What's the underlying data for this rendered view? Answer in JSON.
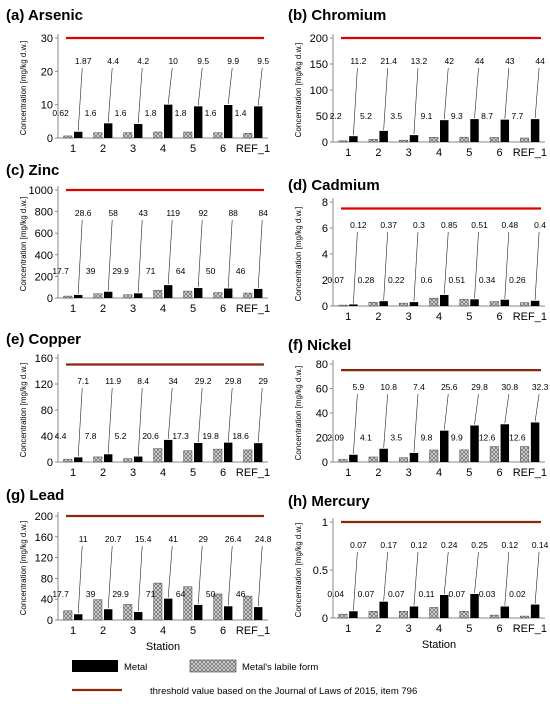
{
  "colors": {
    "metal": "#000000",
    "labile_fill": "#cfcfcf",
    "threshold_a": "#e00000",
    "threshold_b": "#8b2a0a"
  },
  "chart_data": [
    {
      "type": "bar",
      "title": "(a) Arsenic",
      "ylabel": "Concentration [mg/kg d.w.]",
      "xlabel": "",
      "ylim": [
        0,
        30
      ],
      "yticks": [
        0,
        10,
        20,
        30
      ],
      "categories": [
        "1",
        "2",
        "3",
        "4",
        "5",
        "6",
        "REF_1"
      ],
      "series": [
        {
          "name": "Metal",
          "values": [
            1.87,
            4.4,
            4.2,
            10,
            9.5,
            9.9,
            9.5
          ],
          "labels": [
            "1.87",
            "4.4",
            "4.2",
            "10",
            "9.5",
            "9.9",
            "9.5"
          ]
        },
        {
          "name": "Metal's labile form",
          "values": [
            0.62,
            1.6,
            1.6,
            1.8,
            1.8,
            1.6,
            1.4
          ],
          "labels": [
            "0.62",
            "1.6",
            "1.6",
            "1.8",
            "1.8",
            "1.6",
            "1.4"
          ]
        }
      ],
      "threshold": 30,
      "threshold_color": "red"
    },
    {
      "type": "bar",
      "title": "(b) Chromium",
      "ylabel": "Concentration [mg/kg d.w.]",
      "xlabel": "",
      "ylim": [
        0,
        200
      ],
      "yticks": [
        0,
        50,
        100,
        150,
        200
      ],
      "categories": [
        "1",
        "2",
        "3",
        "4",
        "5",
        "6",
        "REF_1"
      ],
      "series": [
        {
          "name": "Metal",
          "values": [
            11.2,
            21.4,
            13.2,
            42,
            44,
            43,
            44
          ],
          "labels": [
            "11.2",
            "21.4",
            "13.2",
            "42",
            "44",
            "43",
            "44"
          ]
        },
        {
          "name": "Metal's labile form",
          "values": [
            2.2,
            5.2,
            3.5,
            9.1,
            9.3,
            8.7,
            7.7
          ],
          "labels": [
            "2.2",
            "5.2",
            "3.5",
            "9.1",
            "9.3",
            "8.7",
            "7.7"
          ]
        }
      ],
      "threshold": 200,
      "threshold_color": "red"
    },
    {
      "type": "bar",
      "title": "(c) Zinc",
      "ylabel": "Concentration [mg/kg d.w.]",
      "xlabel": "",
      "ylim": [
        0,
        1000
      ],
      "yticks": [
        0,
        200,
        400,
        600,
        800,
        1000
      ],
      "categories": [
        "1",
        "2",
        "3",
        "4",
        "5",
        "6",
        "REF_1"
      ],
      "series": [
        {
          "name": "Metal",
          "values": [
            28.6,
            58,
            43,
            119,
            92,
            88,
            84
          ],
          "labels": [
            "28.6",
            "58",
            "43",
            "119",
            "92",
            "88",
            "84"
          ]
        },
        {
          "name": "Metal's labile form",
          "values": [
            17.7,
            39,
            29.9,
            71,
            64,
            50,
            46
          ],
          "labels": [
            "17.7",
            "39",
            "29.9",
            "71",
            "64",
            "50",
            "46"
          ]
        }
      ],
      "threshold": 1000,
      "threshold_color": "red"
    },
    {
      "type": "bar",
      "title": "(d) Cadmium",
      "ylabel": "Concentration [mg/kg d.w.]",
      "xlabel": "",
      "ylim": [
        0,
        8
      ],
      "yticks": [
        0,
        2,
        4,
        6,
        8
      ],
      "categories": [
        "1",
        "2",
        "3",
        "4",
        "5",
        "6",
        "REF_1"
      ],
      "series": [
        {
          "name": "Metal",
          "values": [
            0.12,
            0.37,
            0.3,
            0.85,
            0.51,
            0.48,
            0.4
          ],
          "labels": [
            "0.12",
            "0.37",
            "0.3",
            "0.85",
            "0.51",
            "0.48",
            "0.4"
          ]
        },
        {
          "name": "Metal's labile form",
          "values": [
            0.07,
            0.28,
            0.22,
            0.6,
            0.51,
            0.34,
            0.26
          ],
          "labels": [
            "0.07",
            "0.28",
            "0.22",
            "0.6",
            "0.51",
            "0.34",
            "0.26"
          ]
        }
      ],
      "threshold": 7.5,
      "threshold_color": "red"
    },
    {
      "type": "bar",
      "title": "(e) Copper",
      "ylabel": "Concentration [mg/kg d.w.]",
      "xlabel": "",
      "ylim": [
        0,
        160
      ],
      "yticks": [
        0,
        40,
        80,
        120,
        160
      ],
      "categories": [
        "1",
        "2",
        "3",
        "4",
        "5",
        "6",
        "REF_1"
      ],
      "series": [
        {
          "name": "Metal",
          "values": [
            7.1,
            11.9,
            8.4,
            34,
            29.2,
            29.8,
            29
          ],
          "labels": [
            "7.1",
            "11.9",
            "8.4",
            "34",
            "29.2",
            "29.8",
            "29"
          ]
        },
        {
          "name": "Metal's labile form",
          "values": [
            4.4,
            7.8,
            5.2,
            20.6,
            17.3,
            19.8,
            18.6
          ],
          "labels": [
            "4.4",
            "7.8",
            "5.2",
            "20.6",
            "17.3",
            "19.8",
            "18.6"
          ]
        }
      ],
      "threshold": 150,
      "threshold_color": "brown"
    },
    {
      "type": "bar",
      "title": "(f) Nickel",
      "ylabel": "Concentration [mg/kg d.w.]",
      "xlabel": "",
      "ylim": [
        0,
        80
      ],
      "yticks": [
        0,
        20,
        40,
        60,
        80
      ],
      "categories": [
        "1",
        "2",
        "3",
        "4",
        "5",
        "6",
        "REF_1"
      ],
      "series": [
        {
          "name": "Metal",
          "values": [
            5.9,
            10.8,
            7.4,
            25.6,
            29.8,
            30.8,
            32.3
          ],
          "labels": [
            "5.9",
            "10.8",
            "7.4",
            "25.6",
            "29.8",
            "30.8",
            "32.3"
          ]
        },
        {
          "name": "Metal's labile form",
          "values": [
            2.09,
            4.1,
            3.5,
            9.8,
            9.9,
            12.6,
            12.6
          ],
          "labels": [
            "2.09",
            "4.1",
            "3.5",
            "9.8",
            "9.9",
            "12.6",
            "12.6"
          ]
        }
      ],
      "threshold": 75,
      "threshold_color": "brown"
    },
    {
      "type": "bar",
      "title": "(g) Lead",
      "ylabel": "Concentration [mg/kg d.w.]",
      "xlabel": "Station",
      "ylim": [
        0,
        200
      ],
      "yticks": [
        0,
        40,
        80,
        120,
        160,
        200
      ],
      "categories": [
        "1",
        "2",
        "3",
        "4",
        "5",
        "6",
        "REF_1"
      ],
      "series": [
        {
          "name": "Metal",
          "values": [
            11,
            20.7,
            15.4,
            41,
            29,
            26.4,
            24.8
          ],
          "labels": [
            "11",
            "20.7",
            "15.4",
            "41",
            "29",
            "26.4",
            "24.8"
          ]
        },
        {
          "name": "Metal's labile form",
          "values": [
            17.7,
            39,
            29.9,
            71,
            64,
            50,
            46
          ],
          "labels": [
            "17.7",
            "39",
            "29.9",
            "71",
            "64",
            "50",
            "46"
          ]
        }
      ],
      "threshold": 200,
      "threshold_color": "brown"
    },
    {
      "type": "bar",
      "title": "(h) Mercury",
      "ylabel": "Concentration [mg/kg d.w.]",
      "xlabel": "Station",
      "ylim": [
        0,
        1
      ],
      "yticks": [
        0,
        0.5,
        1
      ],
      "categories": [
        "1",
        "2",
        "3",
        "4",
        "5",
        "6",
        "REF_1"
      ],
      "series": [
        {
          "name": "Metal",
          "values": [
            0.07,
            0.17,
            0.12,
            0.24,
            0.25,
            0.12,
            0.14
          ],
          "labels": [
            "0.07",
            "0.17",
            "0.12",
            "0.24",
            "0.25",
            "0.12",
            "0.14"
          ]
        },
        {
          "name": "Metal's labile form",
          "values": [
            0.04,
            0.07,
            0.07,
            0.11,
            0.07,
            0.03,
            0.02
          ],
          "labels": [
            "0.04",
            "0.07",
            "0.07",
            "0.11",
            "0.07",
            "0.03",
            "0.02"
          ]
        }
      ],
      "threshold": 1,
      "threshold_color": "brown"
    }
  ],
  "legend": {
    "metal_label": "Metal",
    "labile_label": "Metal's labile form",
    "threshold_label": "threshold value based on the Journal of Laws of 2015, item 796"
  }
}
